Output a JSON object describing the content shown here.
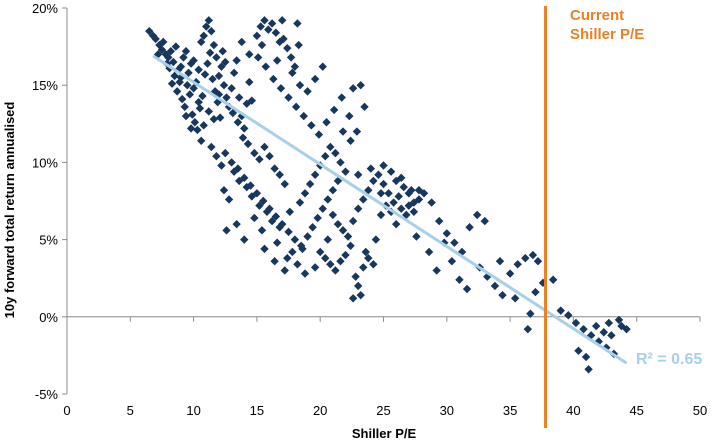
{
  "chart_data": {
    "type": "scatter",
    "xlabel": "Shiller P/E",
    "ylabel": "10y forward total return annualised",
    "xlim": [
      0,
      50
    ],
    "ylim": [
      -5,
      20
    ],
    "x_ticks": [
      0,
      5,
      10,
      15,
      20,
      25,
      30,
      35,
      40,
      45,
      50
    ],
    "y_ticks": [
      -5,
      0,
      5,
      10,
      15,
      20
    ],
    "x_tick_labels": [
      "0",
      "5",
      "10",
      "15",
      "20",
      "25",
      "30",
      "35",
      "40",
      "45",
      "50"
    ],
    "y_tick_labels": [
      "-5%",
      "0%",
      "5%",
      "10%",
      "15%",
      "20%"
    ],
    "grid": false,
    "series": [
      {
        "color": "#17375e",
        "marker": "diamond",
        "points": [
          [
            6.5,
            18.5
          ],
          [
            6.8,
            18.2
          ],
          [
            7.0,
            18.0
          ],
          [
            7.3,
            17.6
          ],
          [
            7.5,
            17.3
          ],
          [
            7.8,
            17.0
          ],
          [
            8.0,
            16.8
          ],
          [
            8.2,
            17.2
          ],
          [
            8.4,
            16.5
          ],
          [
            8.6,
            17.5
          ],
          [
            8.8,
            16.0
          ],
          [
            9.0,
            15.5
          ],
          [
            9.2,
            16.8
          ],
          [
            9.4,
            17.2
          ],
          [
            9.6,
            15.8
          ],
          [
            9.8,
            16.4
          ],
          [
            10.0,
            14.8
          ],
          [
            10.2,
            15.2
          ],
          [
            10.4,
            16.0
          ],
          [
            10.6,
            17.8
          ],
          [
            10.8,
            18.2
          ],
          [
            11.0,
            18.8
          ],
          [
            11.2,
            19.2
          ],
          [
            11.4,
            18.5
          ],
          [
            11.6,
            17.6
          ],
          [
            11.8,
            16.8
          ],
          [
            12.0,
            15.6
          ],
          [
            12.2,
            16.2
          ],
          [
            12.4,
            15.0
          ],
          [
            12.6,
            14.2
          ],
          [
            12.8,
            13.6
          ],
          [
            13.0,
            14.8
          ],
          [
            13.2,
            15.8
          ],
          [
            13.4,
            16.6
          ],
          [
            13.6,
            14.2
          ],
          [
            13.8,
            13.0
          ],
          [
            14.0,
            12.2
          ],
          [
            14.2,
            13.8
          ],
          [
            14.4,
            15.2
          ],
          [
            14.6,
            14.0
          ],
          [
            7.6,
            17.8
          ],
          [
            8.1,
            16.1
          ],
          [
            8.3,
            15.1
          ],
          [
            8.7,
            14.6
          ],
          [
            9.1,
            14.1
          ],
          [
            9.3,
            13.6
          ],
          [
            9.7,
            14.4
          ],
          [
            9.9,
            13.1
          ],
          [
            10.1,
            12.6
          ],
          [
            10.3,
            12.1
          ],
          [
            10.5,
            13.5
          ],
          [
            10.7,
            14.3
          ],
          [
            10.9,
            15.7
          ],
          [
            11.1,
            16.4
          ],
          [
            11.3,
            17.1
          ],
          [
            11.5,
            15.4
          ],
          [
            11.7,
            14.6
          ],
          [
            11.9,
            13.9
          ],
          [
            12.1,
            12.9
          ],
          [
            12.3,
            17.2
          ],
          [
            8.9,
            15.2
          ],
          [
            9.5,
            15.0
          ],
          [
            10.0,
            16.6
          ],
          [
            10.4,
            13.9
          ],
          [
            10.8,
            12.4
          ],
          [
            11.2,
            13.3
          ],
          [
            11.6,
            12.8
          ],
          [
            12.0,
            14.4
          ],
          [
            12.5,
            16.5
          ],
          [
            13.1,
            13.2
          ],
          [
            13.5,
            12.6
          ],
          [
            13.9,
            11.6
          ],
          [
            14.3,
            11.2
          ],
          [
            14.8,
            10.6
          ],
          [
            15.2,
            10.2
          ],
          [
            15.6,
            11.0
          ],
          [
            16.0,
            10.4
          ],
          [
            16.4,
            9.6
          ],
          [
            16.8,
            9.2
          ],
          [
            17.2,
            8.6
          ],
          [
            12.5,
            10.6
          ],
          [
            13.0,
            10.0
          ],
          [
            13.5,
            9.6
          ],
          [
            14.0,
            9.0
          ],
          [
            14.5,
            8.5
          ],
          [
            15.0,
            8.0
          ],
          [
            15.5,
            7.5
          ],
          [
            16.0,
            7.0
          ],
          [
            16.5,
            6.5
          ],
          [
            17.0,
            6.0
          ],
          [
            17.5,
            5.5
          ],
          [
            18.0,
            5.0
          ],
          [
            18.5,
            4.6
          ],
          [
            17.8,
            4.2
          ],
          [
            17.4,
            3.8
          ],
          [
            18.2,
            3.4
          ],
          [
            16.8,
            5.8
          ],
          [
            16.2,
            6.2
          ],
          [
            15.8,
            6.8
          ],
          [
            15.2,
            7.2
          ],
          [
            14.6,
            7.8
          ],
          [
            14.2,
            8.4
          ],
          [
            13.6,
            8.8
          ],
          [
            13.2,
            9.4
          ],
          [
            12.8,
            7.6
          ],
          [
            12.4,
            8.2
          ],
          [
            14.8,
            6.4
          ],
          [
            15.4,
            5.6
          ],
          [
            16.6,
            4.8
          ],
          [
            17.6,
            6.8
          ],
          [
            18.4,
            7.4
          ],
          [
            18.8,
            8.0
          ],
          [
            19.2,
            8.6
          ],
          [
            19.6,
            9.2
          ],
          [
            20.0,
            9.8
          ],
          [
            20.4,
            10.4
          ],
          [
            20.8,
            11.0
          ],
          [
            21.2,
            10.6
          ],
          [
            21.6,
            10.0
          ],
          [
            22.0,
            9.4
          ],
          [
            15.0,
            18.2
          ],
          [
            15.3,
            18.8
          ],
          [
            15.6,
            19.2
          ],
          [
            15.9,
            18.6
          ],
          [
            16.2,
            19.0
          ],
          [
            16.5,
            18.4
          ],
          [
            16.8,
            17.8
          ],
          [
            17.1,
            18.0
          ],
          [
            17.4,
            17.4
          ],
          [
            17.7,
            16.8
          ],
          [
            18.0,
            16.2
          ],
          [
            18.3,
            17.6
          ],
          [
            15.4,
            17.6
          ],
          [
            15.1,
            16.8
          ],
          [
            15.7,
            16.2
          ],
          [
            16.3,
            15.4
          ],
          [
            16.9,
            14.8
          ],
          [
            17.5,
            14.2
          ],
          [
            18.1,
            13.6
          ],
          [
            18.7,
            13.0
          ],
          [
            19.3,
            12.4
          ],
          [
            19.9,
            11.8
          ],
          [
            20.5,
            12.6
          ],
          [
            21.1,
            13.4
          ],
          [
            21.7,
            14.2
          ],
          [
            22.3,
            13.0
          ],
          [
            22.9,
            12.0
          ],
          [
            23.5,
            13.6
          ],
          [
            22.6,
            14.8
          ],
          [
            23.2,
            15.0
          ],
          [
            22.4,
            11.4
          ],
          [
            21.8,
            12.0
          ],
          [
            21.4,
            8.8
          ],
          [
            21.0,
            8.2
          ],
          [
            20.6,
            7.6
          ],
          [
            20.2,
            7.0
          ],
          [
            19.8,
            6.4
          ],
          [
            19.4,
            5.8
          ],
          [
            19.0,
            5.2
          ],
          [
            18.6,
            4.4
          ],
          [
            20.0,
            4.2
          ],
          [
            20.4,
            3.8
          ],
          [
            20.8,
            3.4
          ],
          [
            21.2,
            3.0
          ],
          [
            21.6,
            3.6
          ],
          [
            22.0,
            4.0
          ],
          [
            22.4,
            4.6
          ],
          [
            22.8,
            2.6
          ],
          [
            23.0,
            2.0
          ],
          [
            23.2,
            1.4
          ],
          [
            22.6,
            1.2
          ],
          [
            23.4,
            3.2
          ],
          [
            23.8,
            3.8
          ],
          [
            24.2,
            3.4
          ],
          [
            22.2,
            5.2
          ],
          [
            21.8,
            5.6
          ],
          [
            21.4,
            6.0
          ],
          [
            21.0,
            6.6
          ],
          [
            20.6,
            5.0
          ],
          [
            22.6,
            6.2
          ],
          [
            23.0,
            7.0
          ],
          [
            23.4,
            7.6
          ],
          [
            23.8,
            8.2
          ],
          [
            24.2,
            8.8
          ],
          [
            24.6,
            9.2
          ],
          [
            25.0,
            8.6
          ],
          [
            25.4,
            8.0
          ],
          [
            25.8,
            7.4
          ],
          [
            26.2,
            7.8
          ],
          [
            26.6,
            8.4
          ],
          [
            27.0,
            7.2
          ],
          [
            27.4,
            6.8
          ],
          [
            27.8,
            7.6
          ],
          [
            26.4,
            9.0
          ],
          [
            25.6,
            9.4
          ],
          [
            24.8,
            8.0
          ],
          [
            26.8,
            6.6
          ],
          [
            25.2,
            7.2
          ],
          [
            27.2,
            8.2
          ],
          [
            28.2,
            8.0
          ],
          [
            28.8,
            7.4
          ],
          [
            29.4,
            6.2
          ],
          [
            30.0,
            5.4
          ],
          [
            30.6,
            4.8
          ],
          [
            31.2,
            4.2
          ],
          [
            31.8,
            5.8
          ],
          [
            32.4,
            6.6
          ],
          [
            33.0,
            6.2
          ],
          [
            32.6,
            3.2
          ],
          [
            33.2,
            2.6
          ],
          [
            33.8,
            2.0
          ],
          [
            34.4,
            1.4
          ],
          [
            35.0,
            2.8
          ],
          [
            35.6,
            3.4
          ],
          [
            36.2,
            3.8
          ],
          [
            36.8,
            4.0
          ],
          [
            37.2,
            3.6
          ],
          [
            37.6,
            2.2
          ],
          [
            37.0,
            1.6
          ],
          [
            36.6,
            0.2
          ],
          [
            28.6,
            4.2
          ],
          [
            29.2,
            3.0
          ],
          [
            30.4,
            3.6
          ],
          [
            31.0,
            2.4
          ],
          [
            31.6,
            1.8
          ],
          [
            38.4,
            2.4
          ],
          [
            39.0,
            0.4
          ],
          [
            39.6,
            0.1
          ],
          [
            40.2,
            -0.4
          ],
          [
            40.8,
            -0.8
          ],
          [
            41.4,
            -1.2
          ],
          [
            42.0,
            -1.6
          ],
          [
            42.6,
            -2.0
          ],
          [
            43.2,
            -2.4
          ],
          [
            43.8,
            -0.6
          ],
          [
            44.2,
            -0.8
          ],
          [
            43.6,
            -0.2
          ],
          [
            42.8,
            -0.4
          ],
          [
            41.8,
            -0.6
          ],
          [
            41.0,
            -2.6
          ],
          [
            40.4,
            -2.2
          ],
          [
            41.2,
            -3.4
          ],
          [
            42.4,
            -1.0
          ],
          [
            43.0,
            -1.2
          ],
          [
            36.4,
            -0.8
          ],
          [
            35.4,
            1.2
          ],
          [
            34.2,
            3.6
          ],
          [
            29.8,
            4.8
          ],
          [
            27.6,
            5.2
          ],
          [
            26.0,
            6.0
          ],
          [
            24.4,
            5.0
          ],
          [
            23.6,
            4.2
          ],
          [
            19.6,
            3.2
          ],
          [
            18.8,
            2.8
          ],
          [
            17.2,
            3.0
          ],
          [
            16.4,
            3.6
          ],
          [
            15.6,
            4.4
          ],
          [
            14.0,
            5.0
          ],
          [
            13.4,
            6.0
          ],
          [
            12.6,
            5.6
          ],
          [
            19.0,
            14.6
          ],
          [
            19.6,
            15.4
          ],
          [
            20.2,
            16.2
          ],
          [
            18.4,
            15.0
          ],
          [
            17.8,
            15.8
          ],
          [
            16.6,
            16.6
          ],
          [
            14.4,
            17.0
          ],
          [
            13.8,
            17.8
          ],
          [
            18.2,
            19.0
          ],
          [
            17.0,
            19.2
          ],
          [
            9.4,
            13.0
          ],
          [
            9.8,
            12.2
          ],
          [
            10.6,
            11.4
          ],
          [
            11.4,
            11.0
          ],
          [
            11.8,
            10.4
          ],
          [
            12.2,
            9.8
          ],
          [
            7.2,
            17.0
          ],
          [
            7.9,
            16.4
          ],
          [
            8.5,
            15.6
          ],
          [
            9.0,
            16.2
          ],
          [
            25.0,
            9.8
          ],
          [
            24.0,
            9.6
          ],
          [
            23.0,
            9.2
          ],
          [
            26.4,
            7.0
          ],
          [
            27.4,
            7.4
          ],
          [
            27.8,
            8.2
          ],
          [
            24.8,
            6.6
          ],
          [
            25.6,
            6.8
          ],
          [
            26.0,
            8.8
          ],
          [
            27.0,
            8.0
          ]
        ]
      }
    ],
    "trendline": {
      "x1": 6.8,
      "y1": 16.9,
      "x2": 44.2,
      "y2": -3.0,
      "color": "#a8d0ec"
    },
    "annotations": [
      {
        "text": "R² = 0.65",
        "color": "#a8d0ec"
      },
      {
        "text_lines": [
          "Current",
          "Shiller P/E"
        ],
        "x": 37.8,
        "color": "#ee7f21"
      }
    ]
  }
}
